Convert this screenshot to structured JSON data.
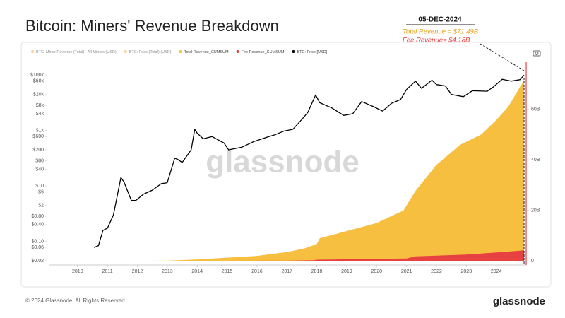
{
  "chart_data": {
    "type": "dual-axis-area-line",
    "title": "Bitcoin: Miners' Revenue Breakdown",
    "legend_hidden": [
      {
        "name": "BTC: Miner Revenue (Total) - All Miners (USD)",
        "color": "#f5a623"
      },
      {
        "name": "BTC: Fees (Total) (USD)",
        "color": "#f5a623"
      }
    ],
    "series": [
      {
        "name": "Total Revenue_CUMSUM",
        "color": "#f7bf3f",
        "kind": "area",
        "axis": "y2",
        "x": [
          2010.55,
          2013.0,
          2014.0,
          2016.0,
          2017.0,
          2017.6,
          2018.0,
          2018.1,
          2020.0,
          2020.9,
          2021.3,
          2022.0,
          2022.8,
          2023.5,
          2024.0,
          2024.4,
          2024.93
        ],
        "values": [
          0,
          100000000,
          600000000,
          2000000000,
          3500000000,
          5000000000,
          6700000000,
          9000000000,
          15000000000,
          20000000000,
          27700000000,
          38000000000,
          46000000000,
          50000000000,
          55700000000,
          61000000000,
          71490000000
        ]
      },
      {
        "name": "Fee Revenue_CUMSUM",
        "color": "#e84142",
        "kind": "area",
        "axis": "y2",
        "x": [
          2010.55,
          2017.0,
          2017.9,
          2018.0,
          2021.0,
          2021.3,
          2023.0,
          2024.3,
          2024.93
        ],
        "values": [
          0,
          100000000,
          300000000,
          500000000,
          1000000000,
          1800000000,
          2500000000,
          3600000000,
          4180000000
        ]
      },
      {
        "name": "BTC: Price [USD]",
        "color": "#000000",
        "kind": "line",
        "axis": "y",
        "x": [
          2010.55,
          2010.7,
          2010.85,
          2011.0,
          2011.2,
          2011.45,
          2011.55,
          2011.8,
          2011.95,
          2012.2,
          2012.5,
          2012.8,
          2013.0,
          2013.25,
          2013.35,
          2013.5,
          2013.8,
          2013.92,
          2014.0,
          2014.2,
          2014.5,
          2014.9,
          2015.05,
          2015.5,
          2015.9,
          2016.4,
          2016.6,
          2016.9,
          2017.2,
          2017.5,
          2017.7,
          2017.96,
          2018.1,
          2018.5,
          2018.9,
          2019.2,
          2019.5,
          2019.9,
          2020.2,
          2020.5,
          2020.8,
          2021.0,
          2021.3,
          2021.5,
          2021.85,
          2022.0,
          2022.3,
          2022.5,
          2022.9,
          2023.2,
          2023.7,
          2023.9,
          2024.2,
          2024.5,
          2024.8,
          2024.93
        ],
        "values": [
          0.06,
          0.07,
          0.25,
          0.3,
          0.9,
          20,
          14,
          3,
          3,
          5,
          7,
          12,
          13,
          100,
          90,
          70,
          200,
          1100,
          800,
          500,
          600,
          350,
          200,
          250,
          400,
          600,
          700,
          950,
          1100,
          2500,
          4500,
          19000,
          10000,
          6500,
          3500,
          4000,
          11000,
          7200,
          5000,
          9500,
          13000,
          30000,
          60000,
          33000,
          65000,
          45000,
          40000,
          20000,
          16500,
          27000,
          26000,
          37000,
          70000,
          60000,
          68000,
          99000
        ]
      }
    ],
    "xlim": [
      2009.06,
      2025.0
    ],
    "xticks": [
      2010,
      2011,
      2012,
      2013,
      2014,
      2015,
      2016,
      2017,
      2018,
      2019,
      2020,
      2021,
      2022,
      2023,
      2024
    ],
    "ylog": true,
    "ylim": [
      0.014,
      290000
    ],
    "yticks": [
      {
        "value": 0.02,
        "label": "$0.02"
      },
      {
        "value": 0.06,
        "label": "$0.06"
      },
      {
        "value": 0.1,
        "label": "$0.10"
      },
      {
        "value": 0.4,
        "label": "$0.40"
      },
      {
        "value": 0.8,
        "label": "$0.80"
      },
      {
        "value": 2,
        "label": "$2"
      },
      {
        "value": 6,
        "label": "$6"
      },
      {
        "value": 10,
        "label": "$10"
      },
      {
        "value": 40,
        "label": "$40"
      },
      {
        "value": 80,
        "label": "$80"
      },
      {
        "value": 200,
        "label": "$200"
      },
      {
        "value": 600,
        "label": "$600"
      },
      {
        "value": 1000,
        "label": "$1k"
      },
      {
        "value": 4000,
        "label": "$4k"
      },
      {
        "value": 8000,
        "label": "$8k"
      },
      {
        "value": 20000,
        "label": "$20k"
      },
      {
        "value": 60000,
        "label": "$60k"
      },
      {
        "value": 100000,
        "label": "$100k"
      }
    ],
    "y2lim": [
      -1600000000,
      78600000000
    ],
    "y2ticks": [
      0,
      {
        "value": 20000000000,
        "label": "20B"
      },
      {
        "value": 40000000000,
        "label": "40B"
      },
      {
        "value": 60000000000,
        "label": "60B"
      }
    ],
    "annotation": {
      "date": "05-DEC-2024",
      "total": "Total Revenue = $71.49B",
      "fee": "Fee Revenue= $4.18B",
      "x": 2024.93
    },
    "watermark": "glassnode",
    "footer": "© 2024 Glassnode. All Rights Reserved.",
    "brand": "glassnode"
  }
}
